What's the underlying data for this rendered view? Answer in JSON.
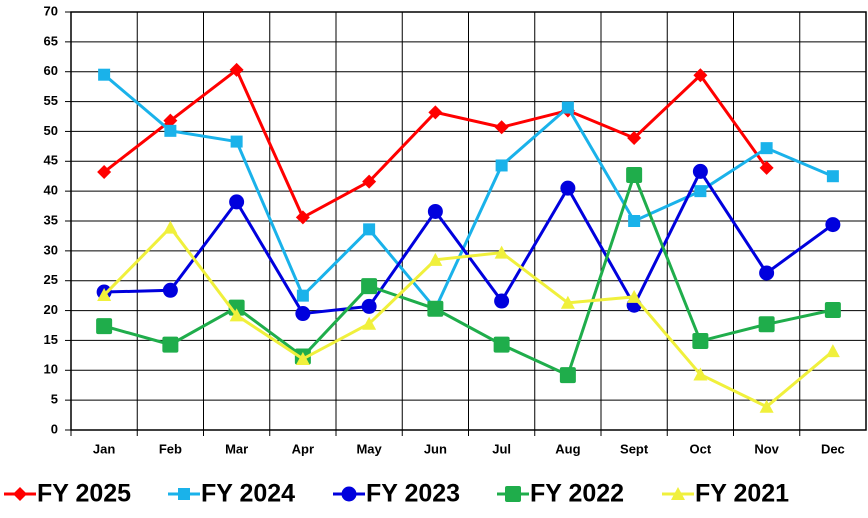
{
  "chart_data": {
    "type": "line",
    "categories": [
      "Jan",
      "Feb",
      "Mar",
      "Apr",
      "May",
      "Jun",
      "Jul",
      "Aug",
      "Sept",
      "Oct",
      "Nov",
      "Dec"
    ],
    "series": [
      {
        "name": "FY 2025",
        "color": "#ff0000",
        "marker": "diamond",
        "values": [
          43.2,
          51.8,
          60.3,
          35.6,
          41.6,
          53.2,
          50.7,
          53.5,
          48.9,
          59.4,
          43.9,
          null
        ]
      },
      {
        "name": "FY 2024",
        "color": "#1ab2ea",
        "marker": "square",
        "values": [
          59.5,
          50.1,
          48.3,
          22.5,
          33.6,
          20.3,
          44.3,
          54.0,
          35.0,
          40.0,
          47.2,
          42.5
        ]
      },
      {
        "name": "FY 2023",
        "color": "#0000dd",
        "marker": "circle",
        "values": [
          23.1,
          23.4,
          38.2,
          19.5,
          20.7,
          36.6,
          21.6,
          40.5,
          20.9,
          43.3,
          26.3,
          34.4
        ]
      },
      {
        "name": "FY 2022",
        "color": "#1fad4b",
        "marker": "bigsquare",
        "values": [
          17.4,
          14.3,
          20.5,
          12.3,
          24.1,
          20.3,
          14.3,
          9.2,
          42.7,
          14.9,
          17.7,
          20.1
        ]
      },
      {
        "name": "FY 2021",
        "color": "#f0f03c",
        "marker": "triangle",
        "values": [
          22.6,
          33.9,
          19.2,
          11.9,
          17.8,
          28.5,
          29.7,
          21.3,
          22.3,
          9.3,
          3.9,
          13.2
        ]
      }
    ],
    "ylim": [
      0,
      70
    ],
    "yticks": [
      0,
      5,
      10,
      15,
      20,
      25,
      30,
      35,
      40,
      45,
      50,
      55,
      60,
      65,
      70
    ],
    "grid": true,
    "legend": "bottom"
  }
}
